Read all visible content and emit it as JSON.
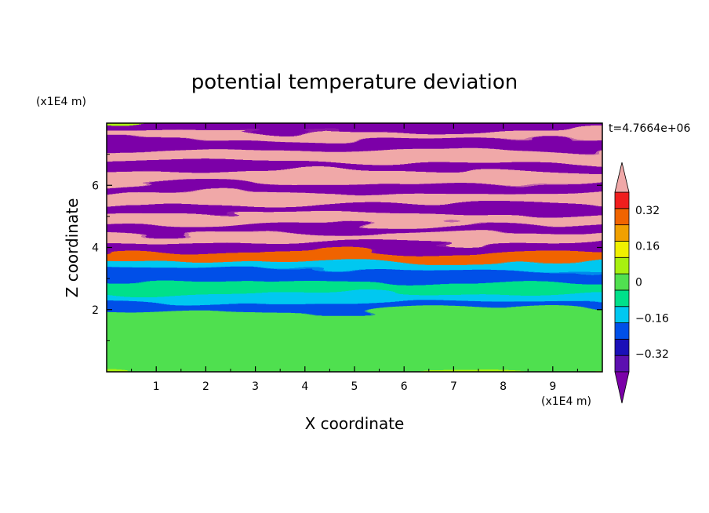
{
  "chart_data": {
    "type": "heatmap",
    "title": "potential temperature deviation",
    "xlabel": "X coordinate",
    "ylabel": "Z coordinate",
    "x_unit": "(x1E4 m)",
    "y_unit": "(x1E4 m)",
    "time_label": "t=4.7664e+06",
    "xlim": [
      0,
      10
    ],
    "ylim": [
      0,
      8
    ],
    "x_ticks": [
      "1",
      "2",
      "3",
      "4",
      "5",
      "6",
      "7",
      "8",
      "9"
    ],
    "y_ticks": [
      "2",
      "4",
      "6"
    ],
    "colorbar": {
      "levels": [
        -0.48,
        -0.4,
        -0.32,
        -0.24,
        -0.16,
        -0.08,
        0,
        0.08,
        0.16,
        0.24,
        0.32,
        0.4,
        0.48
      ],
      "tick_labels": [
        "0.32",
        "0.16",
        "0",
        "−0.16",
        "−0.32"
      ],
      "tick_values": [
        0.32,
        0.16,
        0,
        -0.16,
        -0.32
      ],
      "colors": [
        "#7b00a8",
        "#5c10b0",
        "#1a10b8",
        "#0050e8",
        "#00c8f0",
        "#00e08a",
        "#50e050",
        "#a8f010",
        "#f0f000",
        "#f0a000",
        "#f06400",
        "#f01e1e",
        "#f0a8a8"
      ],
      "extend": "both"
    },
    "bands": [
      {
        "z": [
          0.0,
          2.0
        ],
        "value": 0.04,
        "description_free": true
      },
      {
        "z": [
          2.0,
          2.3
        ],
        "value": -0.24
      },
      {
        "z": [
          2.3,
          2.6
        ],
        "value": -0.16
      },
      {
        "z": [
          2.6,
          2.9
        ],
        "value": -0.08
      },
      {
        "z": [
          2.9,
          3.3
        ],
        "value": -0.2
      },
      {
        "z": [
          3.3,
          3.6
        ],
        "value": -0.1
      },
      {
        "z": [
          3.6,
          3.9
        ],
        "value": 0.36
      },
      {
        "z": [
          3.9,
          4.2
        ],
        "value": -0.48
      },
      {
        "z": [
          4.2,
          4.5
        ],
        "value": 0.52
      },
      {
        "z": [
          4.5,
          4.8
        ],
        "value": -0.52
      },
      {
        "z": [
          4.8,
          5.1
        ],
        "value": 0.52
      },
      {
        "z": [
          5.1,
          5.4
        ],
        "value": -0.48
      },
      {
        "z": [
          5.4,
          5.8
        ],
        "value": 0.52
      },
      {
        "z": [
          5.8,
          6.1
        ],
        "value": -0.52
      },
      {
        "z": [
          6.1,
          6.5
        ],
        "value": 0.52
      },
      {
        "z": [
          6.5,
          6.8
        ],
        "value": -0.52
      },
      {
        "z": [
          6.8,
          7.2
        ],
        "value": 0.52
      },
      {
        "z": [
          7.2,
          7.5
        ],
        "value": -0.52
      },
      {
        "z": [
          7.5,
          7.8
        ],
        "value": 0.52
      },
      {
        "z": [
          7.8,
          8.0
        ],
        "value": -0.52
      }
    ]
  }
}
